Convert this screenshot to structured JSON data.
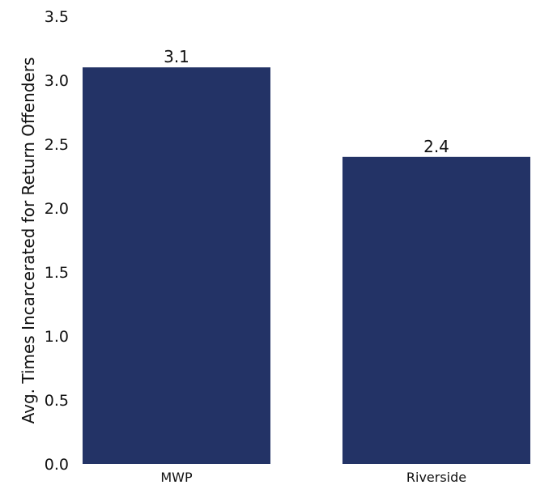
{
  "chart_data": {
    "type": "bar",
    "categories": [
      "MWP",
      "Riverside"
    ],
    "values": [
      3.1,
      2.4
    ],
    "value_labels": [
      "3.1",
      "2.4"
    ],
    "title": "",
    "xlabel": "",
    "ylabel": "Avg. Times Incarcerated for Return Offenders",
    "ylim": [
      0,
      3.5
    ],
    "yticks": [
      0.0,
      0.5,
      1.0,
      1.5,
      2.0,
      2.5,
      3.0,
      3.5
    ],
    "ytick_labels": [
      "0.0",
      "0.5",
      "1.0",
      "1.5",
      "2.0",
      "2.5",
      "3.0",
      "3.5"
    ],
    "grid": false,
    "legend": "none",
    "bar_color": "#233366"
  }
}
